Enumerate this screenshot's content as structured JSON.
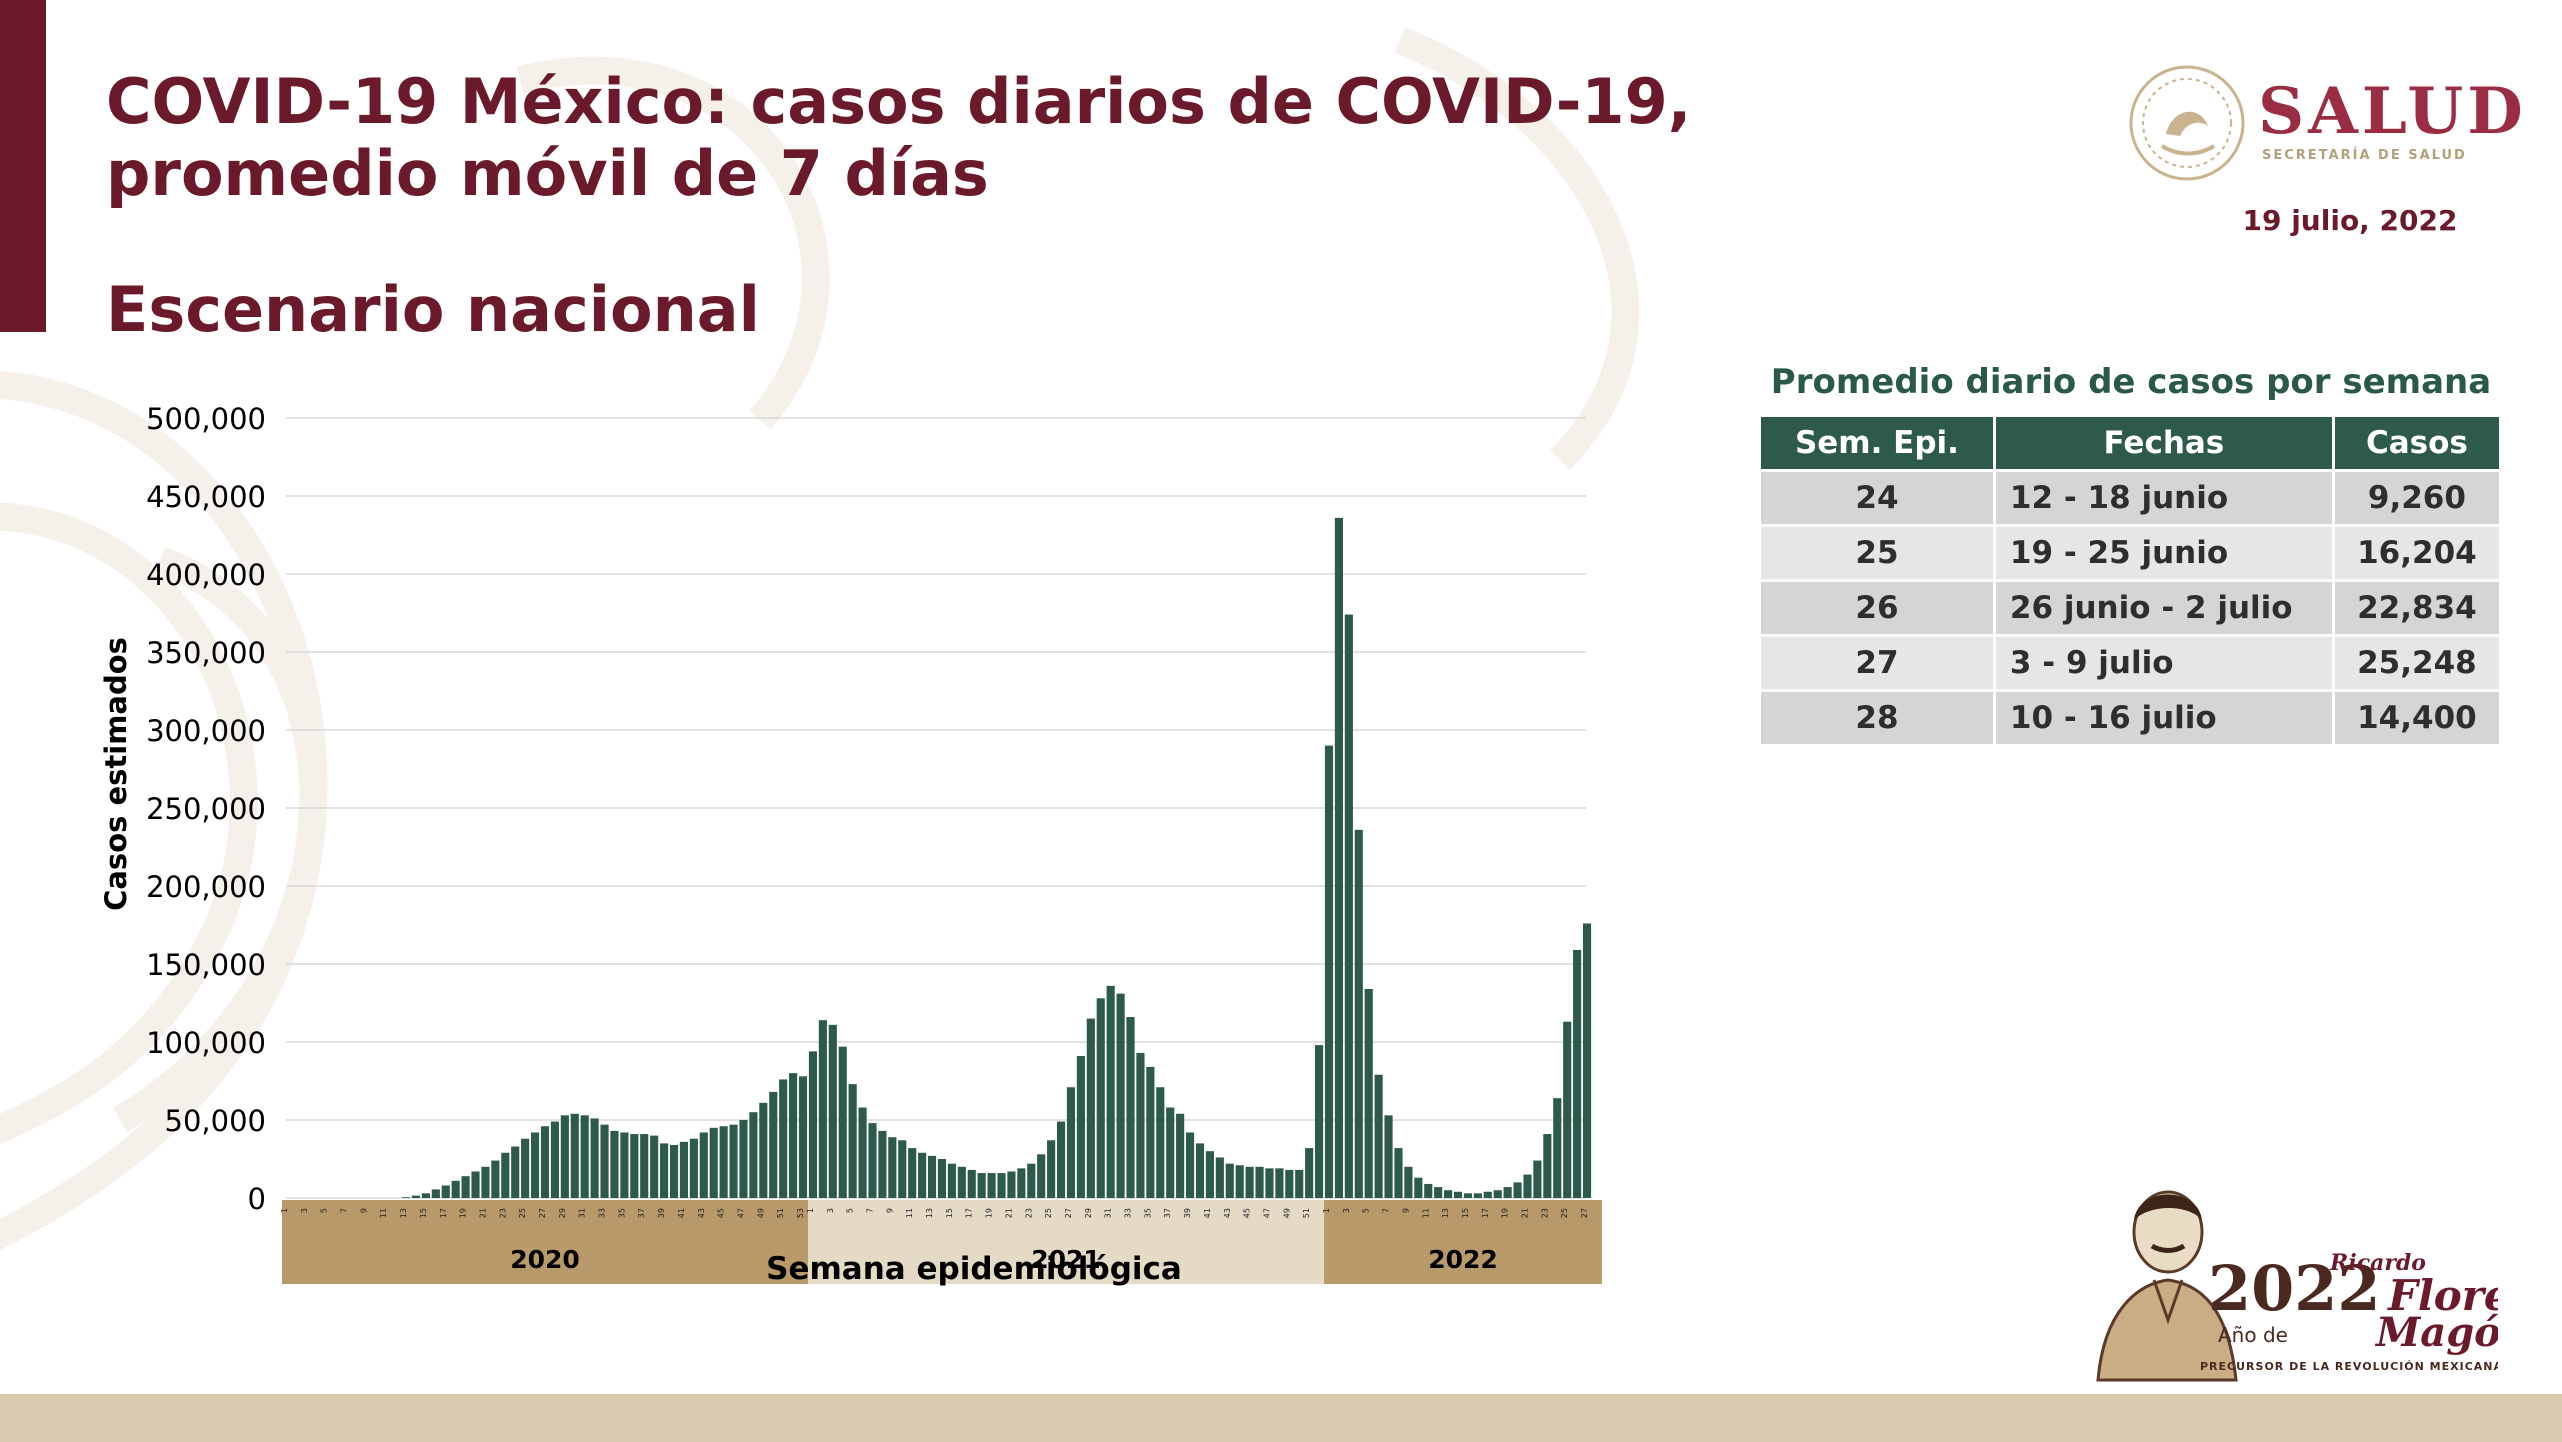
{
  "title": "COVID-19 México: casos diarios de COVID-19, promedio móvil de 7 días",
  "subtitle": "Escenario nacional",
  "date": "19 julio, 2022",
  "logo": {
    "name": "SALUD",
    "sub": "SECRETARÍA DE SALUD"
  },
  "colors": {
    "brand": "#6b1a2c",
    "bars": "#2e5a4b",
    "year_band_dark": "#b8996a",
    "year_band_light": "#e4dac6",
    "table_header": "#2e5a4b"
  },
  "footer_logo": {
    "year": "2022",
    "prefix": "Año de",
    "name_line1": "Ricardo",
    "name_line2": "Flores",
    "name_line3": "Magón",
    "tagline": "PRECURSOR DE LA REVOLUCIÓN MEXICANA"
  },
  "chart_data": {
    "type": "bar",
    "xlabel": "Semana epidemiológica",
    "ylabel": "Casos estimados",
    "ylim": [
      0,
      500000
    ],
    "yticks": [
      "500,000",
      "450,000",
      "400,000",
      "350,000",
      "300,000",
      "250,000",
      "200,000",
      "150,000",
      "100,000",
      "50,000",
      "0"
    ],
    "grid": true,
    "years": [
      {
        "label": "2020",
        "weeks": 53
      },
      {
        "label": "2021",
        "weeks": 52
      },
      {
        "label": "2022",
        "weeks": 28
      }
    ],
    "values": [
      0,
      0,
      0,
      0,
      0,
      0,
      0,
      0,
      0,
      0,
      0,
      0,
      500,
      1500,
      3000,
      5500,
      8000,
      11000,
      14000,
      17000,
      20000,
      24000,
      29000,
      33000,
      38000,
      42000,
      46000,
      49000,
      53000,
      54000,
      53000,
      51000,
      47000,
      43000,
      42000,
      41000,
      41000,
      40000,
      35000,
      34000,
      36000,
      38000,
      42000,
      45000,
      46000,
      47000,
      50000,
      55000,
      61000,
      68000,
      76000,
      80000,
      78000,
      94000,
      114000,
      111000,
      97000,
      73000,
      58000,
      48000,
      43000,
      39000,
      37000,
      32000,
      29000,
      27000,
      25000,
      22000,
      20000,
      18000,
      16000,
      16000,
      16000,
      17000,
      19000,
      22000,
      28000,
      37000,
      49000,
      71000,
      91000,
      115000,
      128000,
      136000,
      131000,
      116000,
      93000,
      84000,
      71000,
      58000,
      54000,
      42000,
      35000,
      30000,
      26000,
      22000,
      21000,
      20000,
      20000,
      19000,
      19000,
      18000,
      18000,
      32000,
      98000,
      290000,
      436000,
      374000,
      236000,
      134000,
      79000,
      53000,
      32000,
      20000,
      13000,
      9000,
      7000,
      5000,
      4000,
      3000,
      3000,
      4000,
      5000,
      7000,
      10000,
      15000,
      24000,
      41000,
      64000,
      113000,
      159000,
      176000
    ]
  },
  "table": {
    "title": "Promedio diario de casos por semana",
    "headers": [
      "Sem. Epi.",
      "Fechas",
      "Casos"
    ],
    "rows": [
      {
        "week": "24",
        "dates": "12 - 18 junio",
        "cases": "9,260"
      },
      {
        "week": "25",
        "dates": "19 - 25 junio",
        "cases": "16,204"
      },
      {
        "week": "26",
        "dates": "26 junio - 2 julio",
        "cases": "22,834"
      },
      {
        "week": "27",
        "dates": "3 - 9 julio",
        "cases": "25,248"
      },
      {
        "week": "28",
        "dates": "10 - 16 julio",
        "cases": "14,400"
      }
    ]
  }
}
